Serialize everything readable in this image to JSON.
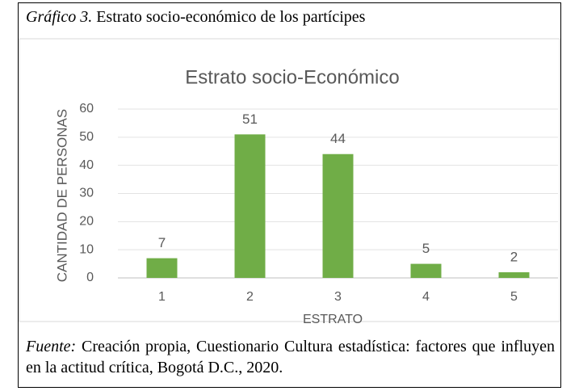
{
  "caption": {
    "label": "Gráfico 3.",
    "text": "Estrato socio-económico de los partícipes"
  },
  "chart_data": {
    "type": "bar",
    "title": "Estrato socio-Económico",
    "x_label": "ESTRATO",
    "y_label": "CANTIDAD DE PERSONAS",
    "categories": [
      "1",
      "2",
      "3",
      "4",
      "5"
    ],
    "values": [
      7,
      51,
      44,
      5,
      2
    ],
    "color": "#70ad47",
    "ylim": [
      0,
      60
    ],
    "yticks": [
      0,
      10,
      20,
      30,
      40,
      50,
      60
    ],
    "grid": true
  },
  "source": {
    "label": "Fuente:",
    "text": "Creación propia, Cuestionario Cultura estadística: factores que influyen en la actitud crítica, Bogotá D.C., 2020."
  }
}
